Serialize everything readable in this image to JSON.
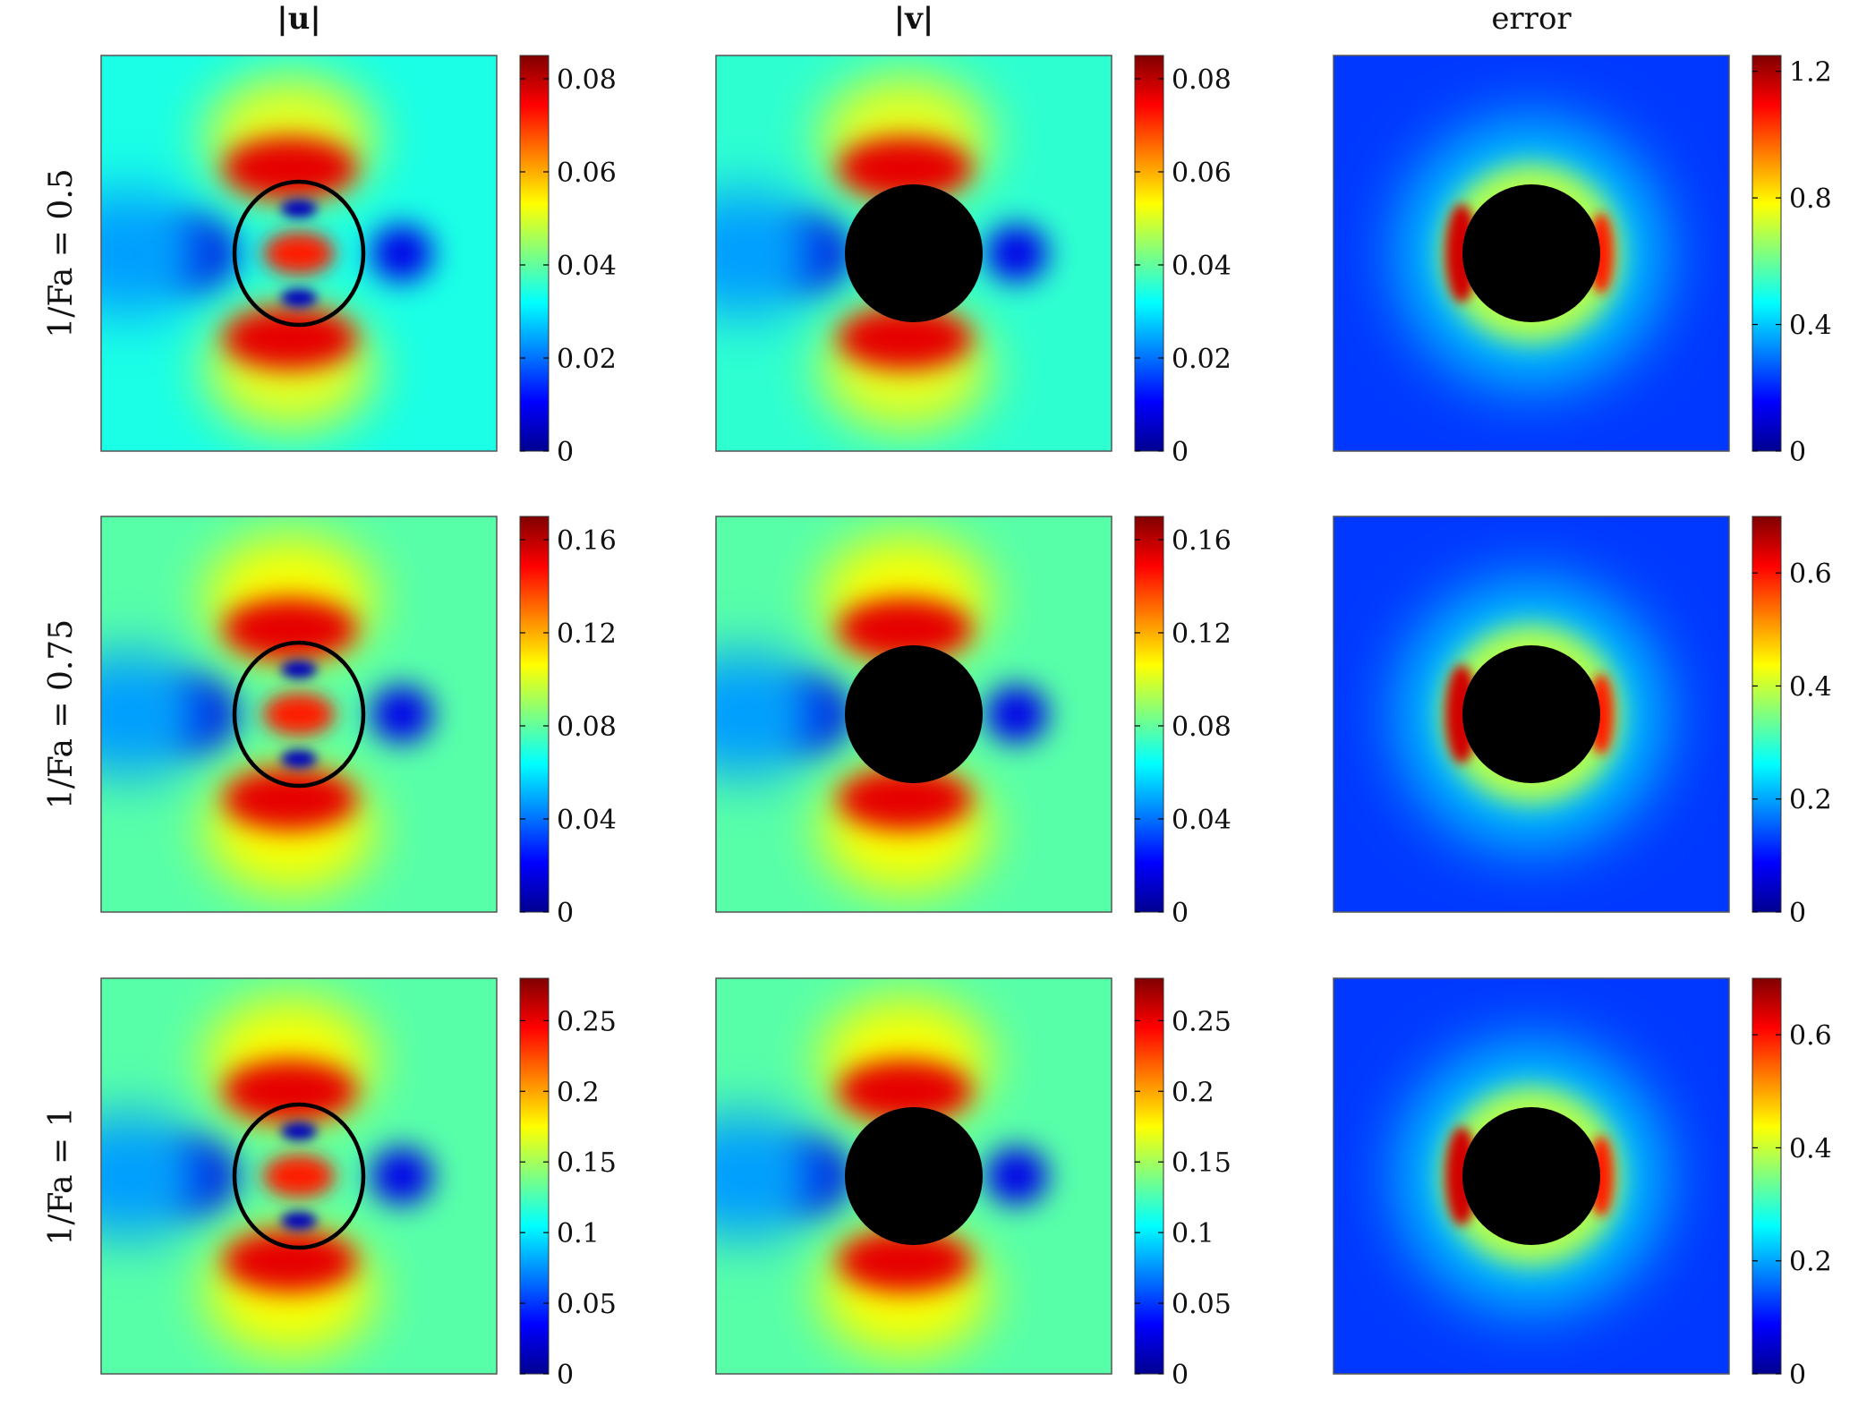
{
  "chart_data": {
    "type": "heatmap",
    "column_titles": [
      "|u|",
      "|v|",
      "error"
    ],
    "row_labels": [
      "1/Fa = 0.5",
      "1/Fa = 0.75",
      "1/Fa = 1"
    ],
    "colormap": "jet",
    "colormap_stops": [
      "#00008f",
      "#0000ff",
      "#0080ff",
      "#00ffff",
      "#80ff80",
      "#ffff00",
      "#ff8000",
      "#ff0000",
      "#800000"
    ],
    "panels": [
      {
        "row": 0,
        "col": 0,
        "field": "u",
        "colorbar": {
          "min": 0,
          "max": 0.085,
          "ticks": [
            0,
            0.02,
            0.04,
            0.06,
            0.08
          ],
          "tick_labels": [
            "0",
            "0.02",
            "0.04",
            "0.06",
            "0.08"
          ]
        },
        "background_level": 0.4,
        "shows_ellipse": true
      },
      {
        "row": 0,
        "col": 1,
        "field": "v",
        "colorbar": {
          "min": 0,
          "max": 0.085,
          "ticks": [
            0,
            0.02,
            0.04,
            0.06,
            0.08
          ],
          "tick_labels": [
            "0",
            "0.02",
            "0.04",
            "0.06",
            "0.08"
          ]
        },
        "background_level": 0.42,
        "shows_obstacle": true
      },
      {
        "row": 0,
        "col": 2,
        "field": "error",
        "colorbar": {
          "min": 0,
          "max": 1.25,
          "ticks": [
            0,
            0.4,
            0.8,
            1.2
          ],
          "tick_labels": [
            "0",
            "0.4",
            "0.8",
            "1.2"
          ]
        },
        "background_level": 0.18,
        "shows_obstacle": true
      },
      {
        "row": 1,
        "col": 0,
        "field": "u",
        "colorbar": {
          "min": 0,
          "max": 0.17,
          "ticks": [
            0,
            0.04,
            0.08,
            0.12,
            0.16
          ],
          "tick_labels": [
            "0",
            "0.04",
            "0.08",
            "0.12",
            "0.16"
          ]
        },
        "background_level": 0.46,
        "shows_ellipse": true
      },
      {
        "row": 1,
        "col": 1,
        "field": "v",
        "colorbar": {
          "min": 0,
          "max": 0.17,
          "ticks": [
            0,
            0.04,
            0.08,
            0.12,
            0.16
          ],
          "tick_labels": [
            "0",
            "0.04",
            "0.08",
            "0.12",
            "0.16"
          ]
        },
        "background_level": 0.46,
        "shows_obstacle": true
      },
      {
        "row": 1,
        "col": 2,
        "field": "error",
        "colorbar": {
          "min": 0,
          "max": 0.7,
          "ticks": [
            0,
            0.2,
            0.4,
            0.6
          ],
          "tick_labels": [
            "0",
            "0.2",
            "0.4",
            "0.6"
          ]
        },
        "background_level": 0.18,
        "shows_obstacle": true
      },
      {
        "row": 2,
        "col": 0,
        "field": "u",
        "colorbar": {
          "min": 0,
          "max": 0.28,
          "ticks": [
            0,
            0.05,
            0.1,
            0.15,
            0.2,
            0.25
          ],
          "tick_labels": [
            "0",
            "0.05",
            "0.1",
            "0.15",
            "0.2",
            "0.25"
          ]
        },
        "background_level": 0.46,
        "shows_ellipse": true
      },
      {
        "row": 2,
        "col": 1,
        "field": "v",
        "colorbar": {
          "min": 0,
          "max": 0.28,
          "ticks": [
            0,
            0.05,
            0.1,
            0.15,
            0.2,
            0.25
          ],
          "tick_labels": [
            "0",
            "0.05",
            "0.1",
            "0.15",
            "0.2",
            "0.25"
          ]
        },
        "background_level": 0.46,
        "shows_obstacle": true
      },
      {
        "row": 2,
        "col": 2,
        "field": "error",
        "colorbar": {
          "min": 0,
          "max": 0.7,
          "ticks": [
            0,
            0.2,
            0.4,
            0.6
          ],
          "tick_labels": [
            "0",
            "0.2",
            "0.4",
            "0.6"
          ]
        },
        "background_level": 0.18,
        "shows_obstacle": true
      }
    ]
  }
}
